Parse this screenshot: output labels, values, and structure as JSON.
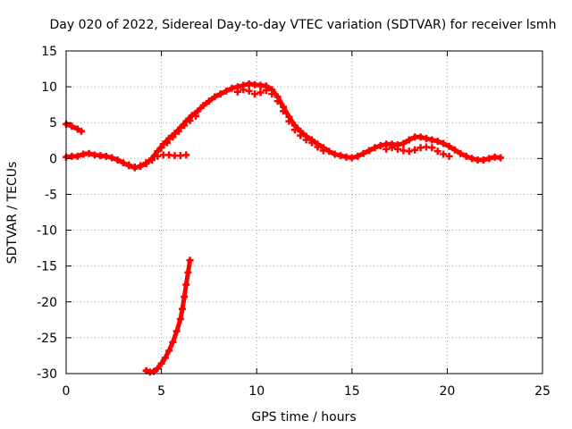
{
  "chart_data": {
    "type": "scatter",
    "title": "Day 020 of 2022, Sidereal Day-to-day VTEC variation (SDTVAR) for receiver lsmh",
    "xlabel": "GPS time / hours",
    "ylabel": "SDTVAR / TECUs",
    "xlim": [
      0,
      25
    ],
    "ylim": [
      -30,
      15
    ],
    "xticks": [
      0,
      5,
      10,
      15,
      20,
      25
    ],
    "yticks": [
      -30,
      -25,
      -20,
      -15,
      -10,
      -5,
      0,
      5,
      10,
      15
    ],
    "grid": true,
    "color": "#ff0000",
    "series": [
      {
        "name": "main_track",
        "points": [
          [
            0.0,
            0.2
          ],
          [
            0.3,
            0.3
          ],
          [
            0.6,
            0.3
          ],
          [
            0.9,
            0.6
          ],
          [
            1.2,
            0.7
          ],
          [
            1.5,
            0.5
          ],
          [
            1.8,
            0.4
          ],
          [
            2.1,
            0.3
          ],
          [
            2.4,
            0.1
          ],
          [
            2.7,
            -0.2
          ],
          [
            3.0,
            -0.6
          ],
          [
            3.3,
            -1.0
          ],
          [
            3.6,
            -1.3
          ],
          [
            3.9,
            -1.1
          ],
          [
            4.2,
            -0.7
          ],
          [
            4.5,
            0.0
          ],
          [
            4.8,
            1.0
          ],
          [
            5.1,
            2.0
          ],
          [
            5.4,
            2.8
          ],
          [
            5.7,
            3.5
          ],
          [
            6.0,
            4.3
          ],
          [
            6.3,
            5.2
          ],
          [
            6.6,
            6.0
          ],
          [
            6.9,
            6.6
          ],
          [
            7.2,
            7.4
          ],
          [
            7.5,
            8.0
          ],
          [
            7.8,
            8.6
          ],
          [
            8.1,
            9.0
          ],
          [
            8.4,
            9.4
          ],
          [
            8.7,
            9.8
          ],
          [
            9.0,
            10.0
          ],
          [
            9.3,
            10.2
          ],
          [
            9.6,
            10.4
          ],
          [
            9.9,
            10.3
          ],
          [
            10.2,
            10.2
          ],
          [
            10.5,
            10.1
          ],
          [
            10.8,
            9.6
          ],
          [
            11.1,
            8.6
          ],
          [
            11.4,
            7.2
          ],
          [
            11.7,
            5.8
          ],
          [
            12.0,
            4.6
          ],
          [
            12.3,
            3.8
          ],
          [
            12.6,
            3.1
          ],
          [
            12.9,
            2.6
          ],
          [
            13.2,
            2.0
          ],
          [
            13.5,
            1.5
          ],
          [
            13.8,
            1.0
          ],
          [
            14.1,
            0.6
          ],
          [
            14.4,
            0.4
          ],
          [
            14.7,
            0.2
          ],
          [
            15.0,
            0.1
          ],
          [
            15.3,
            0.3
          ],
          [
            15.6,
            0.7
          ],
          [
            15.9,
            1.1
          ],
          [
            16.2,
            1.5
          ],
          [
            16.5,
            1.8
          ],
          [
            16.8,
            2.0
          ],
          [
            17.1,
            2.0
          ],
          [
            17.4,
            1.9
          ],
          [
            17.7,
            2.1
          ],
          [
            18.0,
            2.6
          ],
          [
            18.3,
            3.0
          ],
          [
            18.6,
            3.0
          ],
          [
            18.9,
            2.8
          ],
          [
            19.2,
            2.6
          ],
          [
            19.5,
            2.4
          ],
          [
            19.8,
            2.1
          ],
          [
            20.1,
            1.7
          ],
          [
            20.4,
            1.2
          ],
          [
            20.7,
            0.7
          ],
          [
            21.0,
            0.3
          ],
          [
            21.3,
            0.0
          ],
          [
            21.6,
            -0.2
          ],
          [
            21.9,
            -0.2
          ],
          [
            22.2,
            0.0
          ],
          [
            22.5,
            0.2
          ],
          [
            22.8,
            0.1
          ]
        ]
      },
      {
        "name": "lower_branch",
        "points": [
          [
            3.3,
            -0.9
          ],
          [
            3.6,
            -1.2
          ],
          [
            3.9,
            -1.0
          ],
          [
            4.2,
            -0.6
          ],
          [
            4.5,
            -0.2
          ],
          [
            4.8,
            0.3
          ],
          [
            5.1,
            0.5
          ],
          [
            5.4,
            0.5
          ],
          [
            5.7,
            0.4
          ],
          [
            6.0,
            0.4
          ],
          [
            6.3,
            0.5
          ],
          [
            5.0,
            1.5
          ],
          [
            5.3,
            2.2
          ],
          [
            5.6,
            3.0
          ],
          [
            5.9,
            3.8
          ],
          [
            6.2,
            4.6
          ],
          [
            6.5,
            5.3
          ],
          [
            6.8,
            5.9
          ]
        ]
      },
      {
        "name": "upper_branch",
        "points": [
          [
            9.0,
            9.3
          ],
          [
            9.3,
            9.6
          ],
          [
            9.6,
            9.4
          ],
          [
            9.9,
            9.0
          ],
          [
            10.2,
            9.2
          ],
          [
            10.5,
            9.5
          ],
          [
            10.8,
            9.0
          ],
          [
            11.1,
            8.0
          ],
          [
            11.4,
            6.6
          ],
          [
            11.7,
            5.2
          ],
          [
            12.0,
            4.0
          ],
          [
            12.3,
            3.2
          ],
          [
            12.6,
            2.6
          ],
          [
            12.9,
            2.2
          ],
          [
            13.2,
            1.6
          ],
          [
            13.5,
            1.1
          ],
          [
            16.8,
            1.3
          ],
          [
            17.1,
            1.5
          ],
          [
            17.4,
            1.3
          ],
          [
            17.7,
            1.1
          ],
          [
            18.0,
            1.0
          ],
          [
            18.3,
            1.2
          ],
          [
            18.6,
            1.5
          ],
          [
            18.9,
            1.6
          ],
          [
            19.2,
            1.5
          ],
          [
            19.5,
            1.0
          ],
          [
            19.8,
            0.6
          ],
          [
            20.1,
            0.3
          ]
        ]
      },
      {
        "name": "start_segment",
        "points": [
          [
            0.0,
            4.8
          ],
          [
            0.3,
            4.5
          ],
          [
            0.6,
            4.1
          ],
          [
            0.8,
            3.8
          ]
        ]
      },
      {
        "name": "drop_segment",
        "points": [
          [
            4.2,
            -29.6
          ],
          [
            4.4,
            -29.8
          ],
          [
            4.6,
            -29.7
          ],
          [
            4.8,
            -29.3
          ],
          [
            5.0,
            -28.6
          ],
          [
            5.2,
            -27.8
          ],
          [
            5.4,
            -26.8
          ],
          [
            5.6,
            -25.6
          ],
          [
            5.8,
            -24.1
          ],
          [
            6.0,
            -22.4
          ],
          [
            6.1,
            -21.0
          ],
          [
            6.2,
            -19.3
          ],
          [
            6.3,
            -17.6
          ],
          [
            6.4,
            -15.9
          ],
          [
            6.5,
            -14.2
          ]
        ]
      }
    ]
  }
}
